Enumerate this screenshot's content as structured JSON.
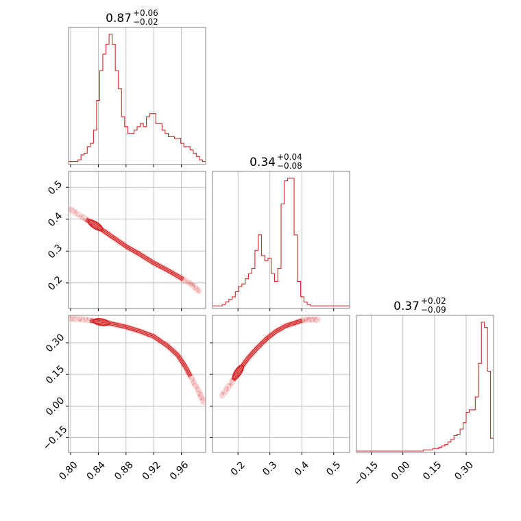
{
  "chart_data": {
    "type": "corner",
    "line_color": "#d62728",
    "parameters": [
      {
        "index": 0,
        "range": [
          0.797,
          0.995
        ],
        "ticks": [
          0.8,
          0.84,
          0.88,
          0.92,
          0.96
        ],
        "tick_labels": [
          "0.80",
          "0.84",
          "0.88",
          "0.92",
          "0.96"
        ]
      },
      {
        "index": 1,
        "range": [
          0.12,
          0.55
        ],
        "ticks": [
          0.2,
          0.3,
          0.4,
          0.5
        ],
        "tick_labels": [
          "0.2",
          "0.3",
          "0.4",
          "0.5"
        ]
      },
      {
        "index": 2,
        "range": [
          -0.22,
          0.43
        ],
        "ticks": [
          -0.15,
          0.0,
          0.15,
          0.3
        ],
        "tick_labels": [
          "−0.15",
          "0.00",
          "0.15",
          "0.30"
        ]
      }
    ],
    "titles": [
      {
        "value": "0.87",
        "upper": "+0.06",
        "lower": "−0.02"
      },
      {
        "value": "0.34",
        "upper": "+0.04",
        "lower": "−0.08"
      },
      {
        "value": "0.37",
        "upper": "+0.02",
        "lower": "−0.09"
      }
    ],
    "histograms": [
      {
        "param": 0,
        "edges": [
          0.797,
          0.995
        ],
        "counts": [
          1,
          1,
          1,
          2,
          5,
          6,
          10,
          12,
          20,
          38,
          56,
          66,
          72,
          78,
          72,
          56,
          45,
          28,
          22,
          18,
          18,
          20,
          22,
          24,
          22,
          28,
          30,
          30,
          24,
          24,
          20,
          18,
          16,
          16,
          15,
          15,
          12,
          10,
          10,
          8,
          6,
          4,
          2,
          1
        ]
      },
      {
        "param": 1,
        "edges": [
          0.12,
          0.55
        ],
        "counts": [
          1,
          1,
          1,
          2,
          4,
          6,
          8,
          12,
          16,
          18,
          22,
          26,
          30,
          44,
          56,
          40,
          36,
          38,
          26,
          20,
          30,
          80,
          98,
          100,
          100,
          56,
          20,
          8,
          4,
          2,
          1,
          1,
          1,
          1,
          1,
          1,
          1,
          1,
          1,
          1,
          1,
          1
        ]
      },
      {
        "param": 2,
        "edges": [
          -0.22,
          0.43
        ],
        "counts": [
          0,
          0,
          0,
          0,
          0,
          0,
          0,
          0,
          0,
          0,
          0,
          0,
          0,
          0,
          0,
          0,
          0,
          0,
          0,
          0,
          0,
          0,
          1,
          1,
          1,
          2,
          2,
          3,
          4,
          5,
          7,
          9,
          12,
          13,
          17,
          22,
          30,
          32,
          32,
          42,
          68,
          100,
          96,
          62,
          10
        ]
      }
    ],
    "pairs": [
      {
        "x_param": 0,
        "y_param": 1,
        "ridge_x": [
          0.8,
          0.82,
          0.84,
          0.86,
          0.88,
          0.9,
          0.92,
          0.94,
          0.96,
          0.975,
          0.985
        ],
        "ridge_y": [
          0.43,
          0.403,
          0.375,
          0.345,
          0.315,
          0.29,
          0.263,
          0.24,
          0.215,
          0.195,
          0.175
        ]
      },
      {
        "x_param": 0,
        "y_param": 2,
        "ridge_x": [
          0.8,
          0.82,
          0.84,
          0.86,
          0.88,
          0.9,
          0.92,
          0.94,
          0.955,
          0.965,
          0.975,
          0.985,
          0.992
        ],
        "ridge_y": [
          0.415,
          0.41,
          0.4,
          0.39,
          0.375,
          0.355,
          0.33,
          0.285,
          0.24,
          0.19,
          0.13,
          0.07,
          0.02
        ]
      },
      {
        "x_param": 1,
        "y_param": 2,
        "ridge_x": [
          0.15,
          0.18,
          0.2,
          0.23,
          0.26,
          0.29,
          0.32,
          0.35,
          0.38,
          0.4,
          0.42,
          0.45
        ],
        "ridge_y": [
          0.05,
          0.11,
          0.16,
          0.225,
          0.275,
          0.32,
          0.355,
          0.38,
          0.395,
          0.405,
          0.41,
          0.41
        ]
      }
    ]
  }
}
